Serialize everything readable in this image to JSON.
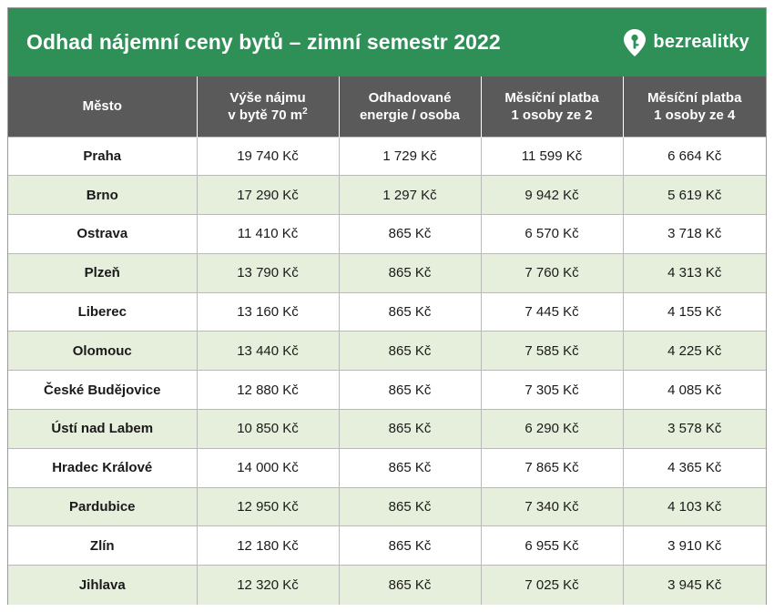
{
  "title": "Odhad nájemní ceny bytů – zimní semestr 2022",
  "brand": {
    "name": "bezrealitky"
  },
  "colors": {
    "banner": "#2e8f57",
    "header": "#5a5a5a",
    "row_alt": "#e6efdc"
  },
  "columns": {
    "city": "Město",
    "rent_l1": "Výše nájmu",
    "rent_l2": "v bytě 70 m",
    "rent_sup": "2",
    "energy_l1": "Odhadované",
    "energy_l2": "energie / osoba",
    "pay2_l1": "Měsíční platba",
    "pay2_l2": "1 osoby ze 2",
    "pay4_l1": "Měsíční platba",
    "pay4_l2": "1 osoby ze 4"
  },
  "rows": [
    {
      "city": "Praha",
      "rent": "19 740 Kč",
      "energy": "1 729 Kč",
      "pay2": "11 599 Kč",
      "pay4": "6 664 Kč"
    },
    {
      "city": "Brno",
      "rent": "17 290 Kč",
      "energy": "1 297 Kč",
      "pay2": "9 942 Kč",
      "pay4": "5 619 Kč"
    },
    {
      "city": "Ostrava",
      "rent": "11 410 Kč",
      "energy": "865 Kč",
      "pay2": "6 570 Kč",
      "pay4": "3 718 Kč"
    },
    {
      "city": "Plzeň",
      "rent": "13 790 Kč",
      "energy": "865 Kč",
      "pay2": "7 760 Kč",
      "pay4": "4 313 Kč"
    },
    {
      "city": "Liberec",
      "rent": "13 160 Kč",
      "energy": "865 Kč",
      "pay2": "7 445 Kč",
      "pay4": "4 155 Kč"
    },
    {
      "city": "Olomouc",
      "rent": "13 440 Kč",
      "energy": "865 Kč",
      "pay2": "7 585 Kč",
      "pay4": "4 225 Kč"
    },
    {
      "city": "České Budějovice",
      "rent": "12 880 Kč",
      "energy": "865 Kč",
      "pay2": "7 305 Kč",
      "pay4": "4 085 Kč"
    },
    {
      "city": "Ústí nad Labem",
      "rent": "10 850 Kč",
      "energy": "865 Kč",
      "pay2": "6 290 Kč",
      "pay4": "3 578 Kč"
    },
    {
      "city": "Hradec Králové",
      "rent": "14 000 Kč",
      "energy": "865 Kč",
      "pay2": "7 865 Kč",
      "pay4": "4 365 Kč"
    },
    {
      "city": "Pardubice",
      "rent": "12 950 Kč",
      "energy": "865 Kč",
      "pay2": "7 340 Kč",
      "pay4": "4 103 Kč"
    },
    {
      "city": "Zlín",
      "rent": "12 180 Kč",
      "energy": "865 Kč",
      "pay2": "6 955 Kč",
      "pay4": "3 910 Kč"
    },
    {
      "city": "Jihlava",
      "rent": "12 320 Kč",
      "energy": "865 Kč",
      "pay2": "7 025 Kč",
      "pay4": "3 945 Kč"
    }
  ]
}
